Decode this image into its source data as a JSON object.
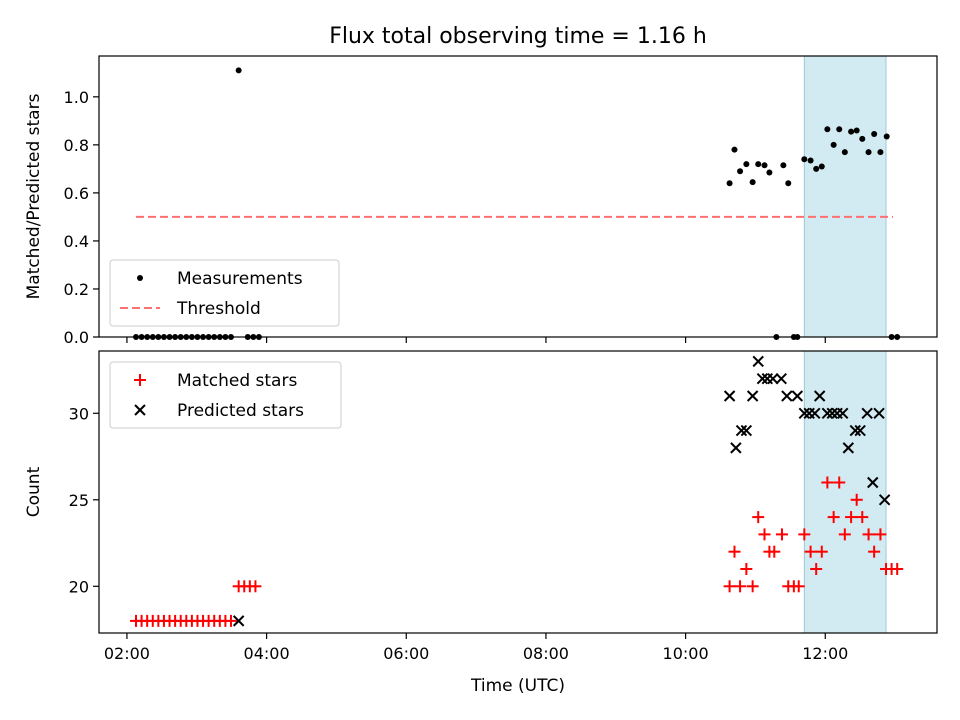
{
  "chart_data": {
    "title": "Flux total observing time = 1.16 h",
    "xlabel": "Time (UTC)",
    "x_unit": "hours (UTC)",
    "xlim": [
      1.6,
      13.6
    ],
    "x_ticks": [
      {
        "value": 2,
        "label": "02:00"
      },
      {
        "value": 4,
        "label": "04:00"
      },
      {
        "value": 6,
        "label": "06:00"
      },
      {
        "value": 8,
        "label": "08:00"
      },
      {
        "value": 10,
        "label": "10:00"
      },
      {
        "value": 12,
        "label": "12:00"
      }
    ],
    "highlight_span": [
      11.7,
      12.87
    ],
    "highlight_color": "#add8e6",
    "panels": [
      {
        "type": "scatter",
        "ylabel": "Matched/Predicted stars",
        "ylim": [
          0,
          1.17
        ],
        "y_ticks": [
          {
            "value": 0,
            "label": "0.0"
          },
          {
            "value": 0.2,
            "label": "0.2"
          },
          {
            "value": 0.4,
            "label": "0.4"
          },
          {
            "value": 0.6,
            "label": "0.6"
          },
          {
            "value": 0.8,
            "label": "0.8"
          },
          {
            "value": 1.0,
            "label": "1.0"
          }
        ],
        "legend": [
          {
            "label": "Measurements",
            "kind": "dot",
            "color": "#000000"
          },
          {
            "label": "Threshold",
            "kind": "dash",
            "color": "#ff7070"
          }
        ],
        "threshold": {
          "value": 0.5,
          "x_from": 2.13,
          "x_to": 12.97,
          "color": "#ff7070"
        },
        "series": [
          {
            "name": "Measurements",
            "marker": "dot",
            "color": "#000000",
            "x": [
              2.13,
              2.21,
              2.29,
              2.37,
              2.45,
              2.53,
              2.61,
              2.69,
              2.77,
              2.85,
              2.93,
              3.01,
              3.09,
              3.17,
              3.25,
              3.33,
              3.41,
              3.49,
              3.6,
              3.73,
              3.81,
              3.89,
              10.63,
              10.7,
              10.78,
              10.87,
              10.96,
              11.04,
              11.13,
              11.2,
              11.3,
              11.4,
              11.47,
              11.55,
              11.6,
              11.7,
              11.79,
              11.87,
              11.95,
              12.03,
              12.12,
              12.2,
              12.28,
              12.37,
              12.45,
              12.53,
              12.62,
              12.7,
              12.79,
              12.88,
              12.95,
              13.03
            ],
            "y": [
              0,
              0,
              0,
              0,
              0,
              0,
              0,
              0,
              0,
              0,
              0,
              0,
              0,
              0,
              0,
              0,
              0,
              0,
              1.11,
              0,
              0,
              0,
              0.64,
              0.78,
              0.69,
              0.72,
              0.645,
              0.72,
              0.715,
              0.685,
              0,
              0.715,
              0.64,
              0,
              0,
              0.74,
              0.735,
              0.7,
              0.71,
              0.865,
              0.8,
              0.865,
              0.77,
              0.855,
              0.86,
              0.825,
              0.77,
              0.845,
              0.77,
              0.835,
              0,
              0
            ]
          }
        ]
      },
      {
        "type": "scatter",
        "ylabel": "Count",
        "ylim": [
          17.3,
          33.6
        ],
        "y_ticks": [
          {
            "value": 20,
            "label": "20"
          },
          {
            "value": 25,
            "label": "25"
          },
          {
            "value": 30,
            "label": "30"
          }
        ],
        "legend": [
          {
            "label": "Matched stars",
            "kind": "plus",
            "color": "#ff0000"
          },
          {
            "label": "Predicted stars",
            "kind": "cross",
            "color": "#000000"
          }
        ],
        "series": [
          {
            "name": "Matched stars",
            "marker": "plus",
            "color": "#ff0000",
            "x": [
              2.13,
              2.21,
              2.29,
              2.37,
              2.45,
              2.53,
              2.61,
              2.69,
              2.77,
              2.85,
              2.93,
              3.01,
              3.09,
              3.17,
              3.25,
              3.33,
              3.41,
              3.49,
              3.6,
              3.68,
              3.76,
              3.84,
              10.63,
              10.7,
              10.78,
              10.87,
              10.96,
              11.04,
              11.13,
              11.2,
              11.27,
              11.38,
              11.47,
              11.55,
              11.62,
              11.7,
              11.79,
              11.87,
              11.95,
              12.03,
              12.12,
              12.2,
              12.28,
              12.37,
              12.45,
              12.53,
              12.62,
              12.7,
              12.79,
              12.87,
              12.95,
              13.03
            ],
            "y": [
              18,
              18,
              18,
              18,
              18,
              18,
              18,
              18,
              18,
              18,
              18,
              18,
              18,
              18,
              18,
              18,
              18,
              18,
              20,
              20,
              20,
              20,
              20,
              22,
              20,
              21,
              20,
              24,
              23,
              22,
              22,
              23,
              20,
              20,
              20,
              23,
              22,
              21,
              22,
              26,
              24,
              26,
              23,
              24,
              25,
              24,
              23,
              22,
              23,
              21,
              21,
              21
            ]
          },
          {
            "name": "Predicted stars",
            "marker": "cross",
            "color": "#000000",
            "x": [
              3.6,
              10.63,
              10.72,
              10.8,
              10.87,
              10.96,
              11.04,
              11.1,
              11.17,
              11.25,
              11.37,
              11.45,
              11.6,
              11.7,
              11.77,
              11.85,
              11.92,
              12.03,
              12.1,
              12.17,
              12.25,
              12.33,
              12.43,
              12.5,
              12.6,
              12.68,
              12.77,
              12.85
            ],
            "y": [
              18,
              31,
              28,
              29,
              29,
              31,
              33,
              32,
              32,
              32,
              32,
              31,
              31,
              30,
              30,
              30,
              31,
              30,
              30,
              30,
              30,
              28,
              29,
              29,
              30,
              26,
              30,
              25
            ]
          }
        ]
      }
    ]
  }
}
